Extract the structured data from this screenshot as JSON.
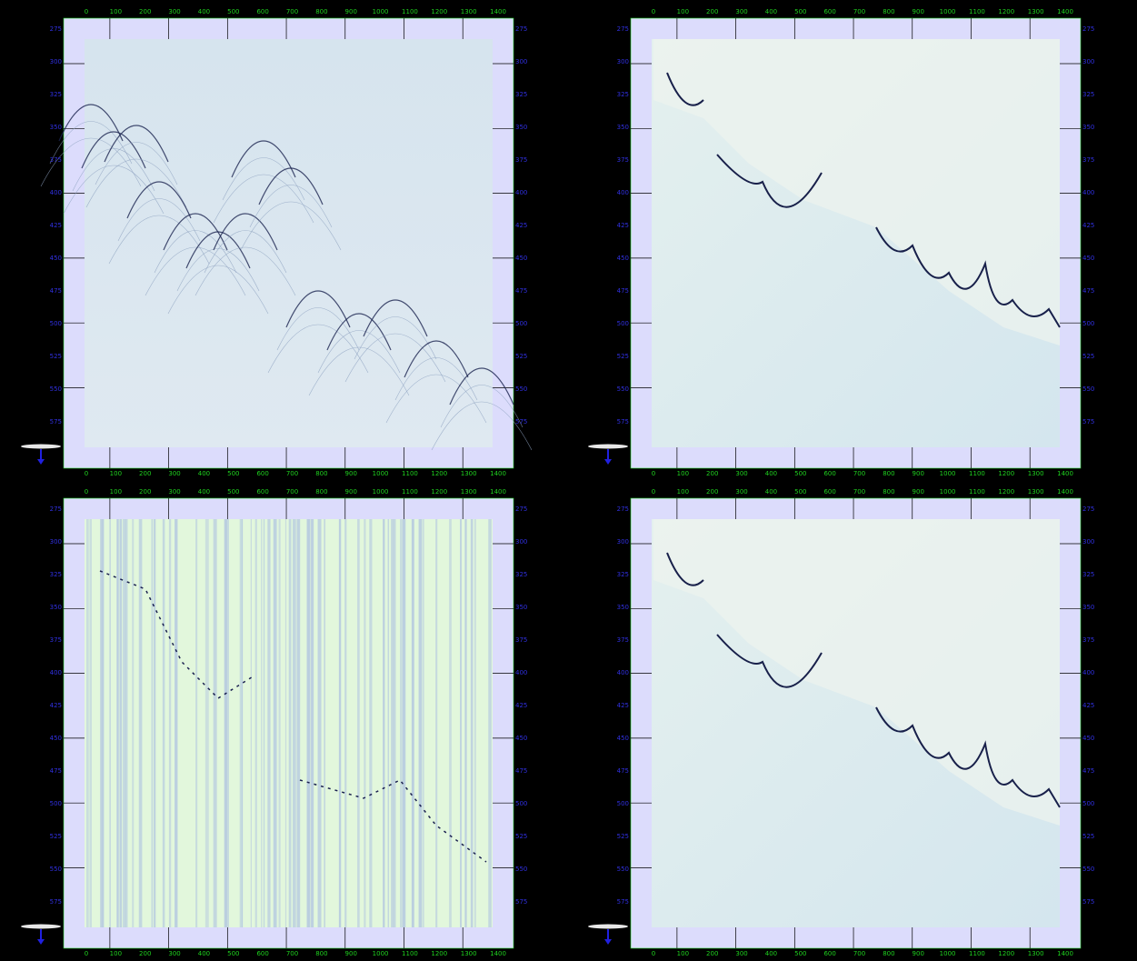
{
  "axes": {
    "x_ticks": [
      0,
      100,
      200,
      300,
      400,
      500,
      600,
      700,
      800,
      900,
      1000,
      1100,
      1200,
      1300,
      1400
    ],
    "y_ticks": [
      275,
      300,
      325,
      350,
      375,
      400,
      425,
      450,
      475,
      500,
      525,
      550,
      575
    ]
  }
}
